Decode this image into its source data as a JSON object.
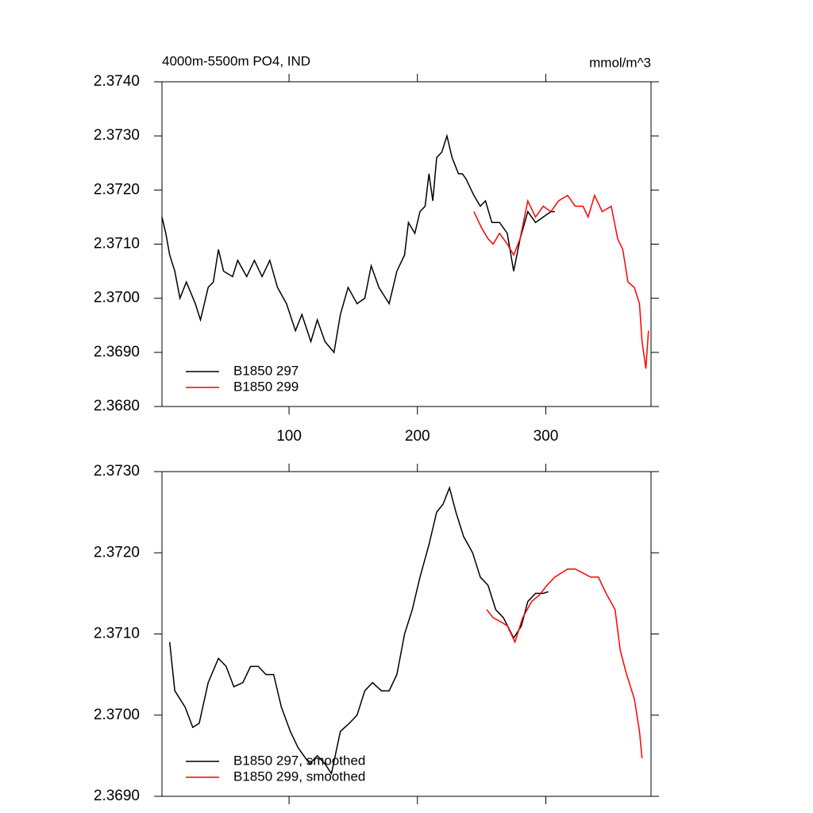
{
  "chart_data": [
    {
      "type": "line",
      "title": "4000m-5500m PO4, IND",
      "y_units": "mmol/m^3",
      "xlim": [
        1,
        382
      ],
      "xticks": [
        100,
        200,
        300
      ],
      "ylim": [
        2.368,
        2.374
      ],
      "yticks": [
        {
          "value": 2.368,
          "label": "2.3680"
        },
        {
          "value": 2.369,
          "label": "2.3690"
        },
        {
          "value": 2.37,
          "label": "2.3700"
        },
        {
          "value": 2.371,
          "label": "2.3710"
        },
        {
          "value": 2.372,
          "label": "2.3720"
        },
        {
          "value": 2.373,
          "label": "2.3730"
        },
        {
          "value": 2.374,
          "label": "2.3740"
        }
      ],
      "legend": "lower left",
      "series": [
        {
          "name": "B1850 297",
          "color": "#000000",
          "x": [
            1,
            4,
            7,
            11,
            15,
            20,
            27,
            31,
            37,
            41,
            45,
            49,
            56,
            60,
            67,
            73,
            79,
            85,
            91,
            98,
            105,
            110,
            117,
            122,
            128,
            135,
            140,
            146,
            153,
            159,
            164,
            170,
            178,
            184,
            190,
            193,
            198,
            202,
            206,
            209,
            212,
            215,
            219,
            223,
            227,
            232,
            235,
            238,
            244,
            249,
            253,
            258,
            264,
            270,
            275,
            280,
            286,
            292,
            298,
            304,
            307
          ],
          "values": [
            2.3715,
            2.3712,
            2.3708,
            2.3705,
            2.37,
            2.3703,
            2.3699,
            2.3696,
            2.3702,
            2.3703,
            2.3709,
            2.3705,
            2.3704,
            2.3707,
            2.3704,
            2.3707,
            2.3704,
            2.3707,
            2.3702,
            2.3699,
            2.3694,
            2.3697,
            2.3692,
            2.3696,
            2.3692,
            2.369,
            2.3697,
            2.3702,
            2.3699,
            2.37,
            2.3706,
            2.3702,
            2.3699,
            2.3705,
            2.3708,
            2.3714,
            2.3712,
            2.3716,
            2.3717,
            2.3723,
            2.3718,
            2.3726,
            2.3727,
            2.373,
            2.3726,
            2.3723,
            2.3723,
            2.3722,
            2.3719,
            2.3717,
            2.3718,
            2.3714,
            2.3714,
            2.3712,
            2.3705,
            2.3711,
            2.3716,
            2.3714,
            2.3715,
            2.3716,
            2.3716
          ]
        },
        {
          "name": "B1850 299",
          "color": "#ff0000",
          "x": [
            244,
            250,
            255,
            259,
            264,
            270,
            275,
            280,
            286,
            292,
            298,
            304,
            310,
            317,
            323,
            329,
            333,
            338,
            344,
            351,
            356,
            360,
            364,
            369,
            373,
            375,
            378,
            380
          ],
          "values": [
            2.3716,
            2.3713,
            2.3711,
            2.371,
            2.3712,
            2.371,
            2.3708,
            2.3711,
            2.3718,
            2.3715,
            2.3717,
            2.3716,
            2.3718,
            2.3719,
            2.3717,
            2.3717,
            2.3715,
            2.3719,
            2.3716,
            2.3717,
            2.3711,
            2.3709,
            2.3703,
            2.3702,
            2.3699,
            2.3692,
            2.3687,
            2.3694
          ]
        }
      ]
    },
    {
      "type": "line",
      "xlim": [
        1,
        382
      ],
      "xticks": [
        100,
        200,
        300
      ],
      "ylim": [
        2.369,
        2.373
      ],
      "yticks": [
        {
          "value": 2.369,
          "label": "2.3690"
        },
        {
          "value": 2.37,
          "label": "2.3700"
        },
        {
          "value": 2.371,
          "label": "2.3710"
        },
        {
          "value": 2.372,
          "label": "2.3720"
        },
        {
          "value": 2.373,
          "label": "2.3730"
        }
      ],
      "legend": "lower left",
      "series": [
        {
          "name": "B1850 297, smoothed",
          "color": "#000000",
          "x": [
            7,
            11,
            19,
            25,
            30,
            37,
            45,
            51,
            57,
            64,
            70,
            76,
            82,
            88,
            94,
            101,
            107,
            116,
            122,
            128,
            133,
            140,
            147,
            153,
            159,
            165,
            172,
            178,
            184,
            190,
            196,
            202,
            209,
            215,
            220,
            225,
            230,
            236,
            243,
            249,
            255,
            261,
            267,
            275,
            281,
            286,
            292,
            298,
            302
          ],
          "values": [
            2.3709,
            2.3703,
            2.3701,
            2.36985,
            2.3699,
            2.3704,
            2.3707,
            2.3706,
            2.37035,
            2.3704,
            2.3706,
            2.3706,
            2.3705,
            2.3705,
            2.3701,
            2.3698,
            2.3696,
            2.3694,
            2.3695,
            2.3694,
            2.36928,
            2.3698,
            2.3699,
            2.37,
            2.3703,
            2.3704,
            2.3703,
            2.3703,
            2.3705,
            2.371,
            2.3713,
            2.3717,
            2.3721,
            2.3725,
            2.3726,
            2.3728,
            2.3725,
            2.3722,
            2.372,
            2.3717,
            2.3716,
            2.3713,
            2.3712,
            2.37095,
            2.3711,
            2.3714,
            2.3715,
            2.3715,
            2.37152
          ]
        },
        {
          "name": "B1850 299, smoothed",
          "color": "#ff0000",
          "x": [
            254,
            259,
            265,
            270,
            276,
            282,
            289,
            295,
            301,
            307,
            317,
            323,
            329,
            335,
            341,
            347,
            354,
            358,
            363,
            369,
            373,
            375
          ],
          "values": [
            2.3713,
            2.3712,
            2.37115,
            2.3711,
            2.3709,
            2.3712,
            2.3714,
            2.37148,
            2.3716,
            2.3717,
            2.3718,
            2.3718,
            2.37175,
            2.3717,
            2.3717,
            2.3715,
            2.3713,
            2.3708,
            2.3705,
            2.3702,
            2.3698,
            2.36947
          ]
        }
      ]
    }
  ]
}
